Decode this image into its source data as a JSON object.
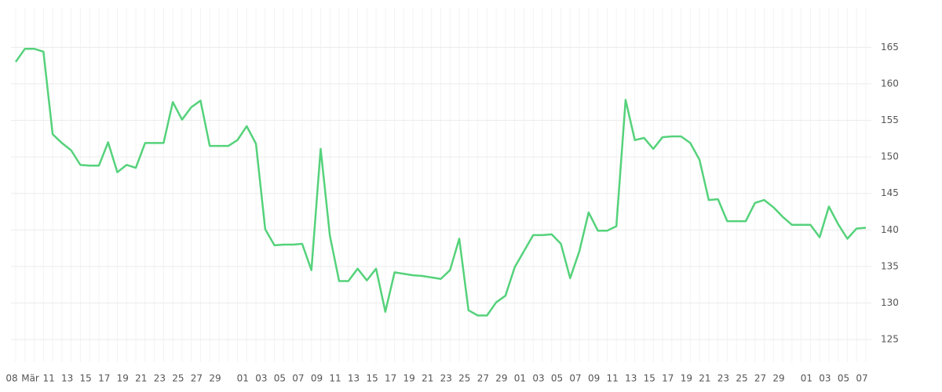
{
  "chart_data": {
    "type": "line",
    "categories": [
      "08",
      null,
      "Mär",
      null,
      "11",
      null,
      "13",
      null,
      "15",
      null,
      "17",
      null,
      "19",
      null,
      "21",
      null,
      "23",
      null,
      "25",
      null,
      "27",
      null,
      "29",
      null,
      null,
      "01",
      null,
      "03",
      null,
      "05",
      null,
      "07",
      null,
      "09",
      null,
      "11",
      null,
      "13",
      null,
      "15",
      null,
      "17",
      null,
      "19",
      null,
      "21",
      null,
      "23",
      null,
      "25",
      null,
      "27",
      null,
      "29",
      null,
      "01",
      null,
      "03",
      null,
      "05",
      null,
      "07",
      null,
      "09",
      null,
      "11",
      null,
      "13",
      null,
      "15",
      null,
      "17",
      null,
      "19",
      null,
      "21",
      null,
      "23",
      null,
      "25",
      null,
      "27",
      null,
      "29",
      null,
      null,
      "01",
      null,
      "03",
      null,
      "05",
      null,
      "07"
    ],
    "series": [
      {
        "color": "#55d27b",
        "values": [
          163.0,
          164.8,
          164.8,
          164.4,
          153.1,
          151.9,
          150.9,
          148.9,
          148.8,
          148.8,
          152.0,
          147.9,
          148.9,
          148.5,
          151.9,
          151.9,
          151.9,
          157.5,
          155.1,
          156.8,
          157.7,
          151.5,
          151.5,
          151.5,
          152.3,
          154.2,
          151.8,
          140.1,
          137.9,
          138.0,
          138.0,
          138.1,
          134.5,
          151.1,
          139.2,
          133.0,
          133.0,
          134.7,
          133.1,
          134.7,
          128.8,
          134.2,
          134.0,
          133.8,
          133.7,
          133.5,
          133.3,
          134.5,
          138.8,
          129.0,
          128.3,
          128.3,
          130.1,
          131.0,
          134.9,
          137.1,
          139.3,
          139.3,
          139.4,
          138.1,
          133.4,
          137.1,
          142.4,
          139.9,
          139.9,
          140.5,
          157.8,
          152.3,
          152.6,
          151.1,
          152.7,
          152.8,
          152.8,
          151.9,
          149.6,
          144.1,
          144.2,
          141.2,
          141.2,
          141.2,
          143.7,
          144.1,
          143.1,
          141.8,
          140.7,
          140.7,
          140.7,
          139.0,
          143.2,
          140.8,
          138.8,
          140.2,
          140.3
        ]
      }
    ],
    "ylim": [
      121.9,
      170.4
    ],
    "yticks": [
      125,
      130,
      135,
      140,
      145,
      150,
      155,
      160,
      165
    ],
    "grid": true
  }
}
